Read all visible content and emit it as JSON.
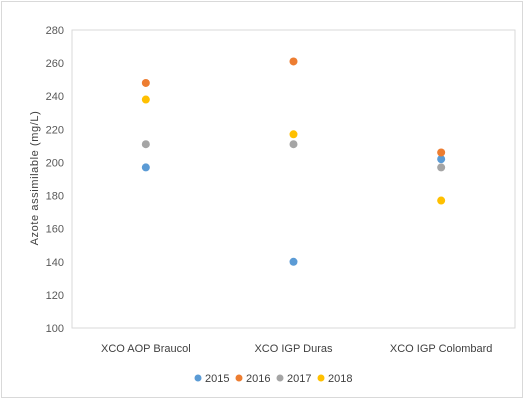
{
  "chart_data": {
    "type": "scatter",
    "ylabel": "Azote assimilable (mg/L)",
    "xlabel": "",
    "title": "",
    "ylim": [
      100,
      280
    ],
    "ytick_step": 20,
    "categories": [
      "XCO AOP Braucol",
      "XCO IGP Duras",
      "XCO IGP Colombard"
    ],
    "series": [
      {
        "name": "2015",
        "color": "#5b9bd5",
        "values": [
          197,
          140,
          202
        ]
      },
      {
        "name": "2016",
        "color": "#ed7d31",
        "values": [
          248,
          261,
          206
        ]
      },
      {
        "name": "2017",
        "color": "#a5a5a5",
        "values": [
          211,
          211,
          197
        ]
      },
      {
        "name": "2018",
        "color": "#ffc000",
        "values": [
          238,
          217,
          177
        ]
      }
    ],
    "grid": false,
    "legend": "bottom"
  }
}
